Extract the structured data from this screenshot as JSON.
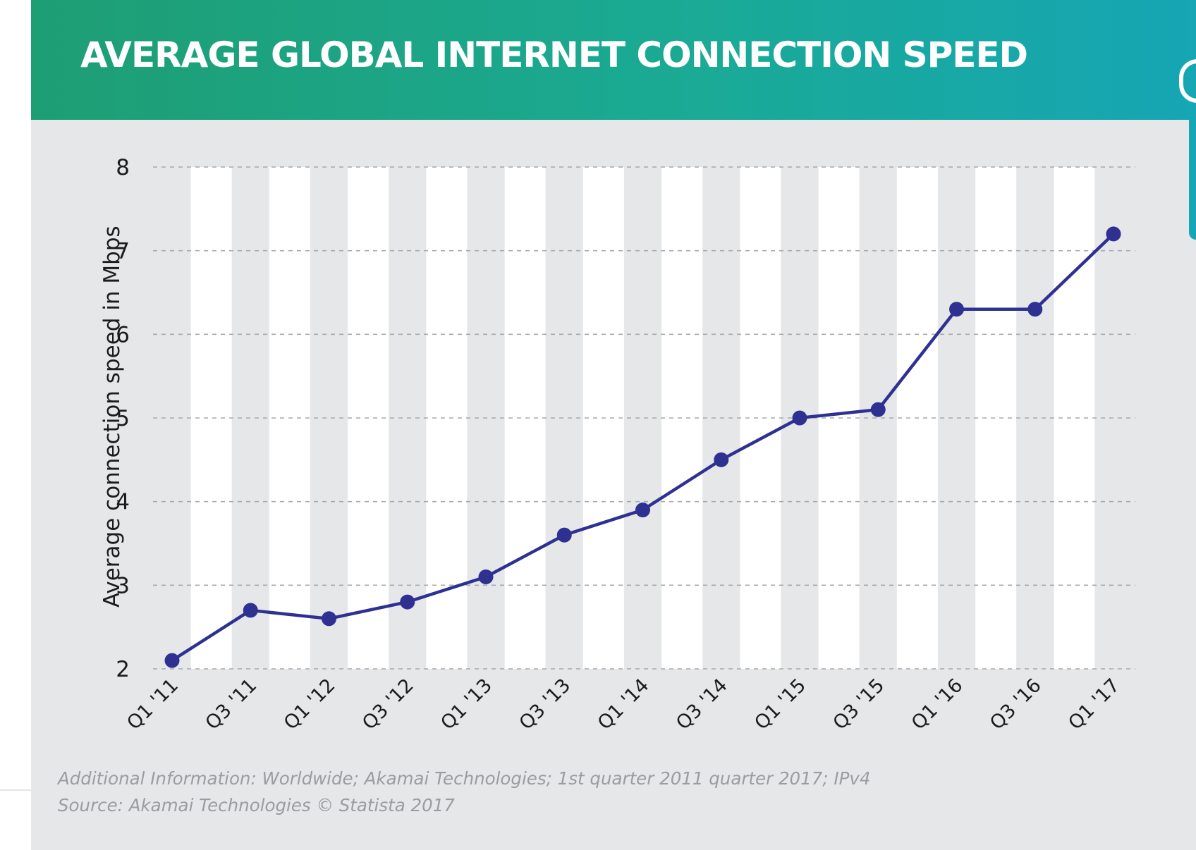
{
  "header": {
    "title": "AVERAGE GLOBAL INTERNET CONNECTION SPEED"
  },
  "colors": {
    "header_start": "#1e9e73",
    "header_end": "#16a6b4",
    "line": "#2e3192",
    "panel": "#e6e7e9",
    "stripe": "#ffffff"
  },
  "chart_data": {
    "type": "line",
    "title": "",
    "xlabel": "",
    "ylabel": "Average connection speed in Mbps",
    "ylim": [
      2,
      8
    ],
    "yticks": [
      2,
      3,
      4,
      5,
      6,
      7,
      8
    ],
    "grid": true,
    "categories": [
      "Q1 '11",
      "Q3 '11",
      "Q1 '12",
      "Q3 '12",
      "Q1 '13",
      "Q3 '13",
      "Q1 '14",
      "Q3 '14",
      "Q1 '15",
      "Q3 '15",
      "Q1 '16",
      "Q3 '16",
      "Q1 '17"
    ],
    "series": [
      {
        "name": "Average connection speed",
        "values": [
          2.1,
          2.7,
          2.6,
          2.8,
          3.1,
          3.6,
          3.9,
          4.5,
          5.0,
          5.1,
          6.3,
          6.3,
          7.2
        ]
      }
    ]
  },
  "footnotes": {
    "info": "Additional Information: Worldwide; Akamai Technologies; 1st quarter 2011 quarter 2017; IPv4",
    "source": "Source: Akamai Technologies © Statista 2017"
  }
}
